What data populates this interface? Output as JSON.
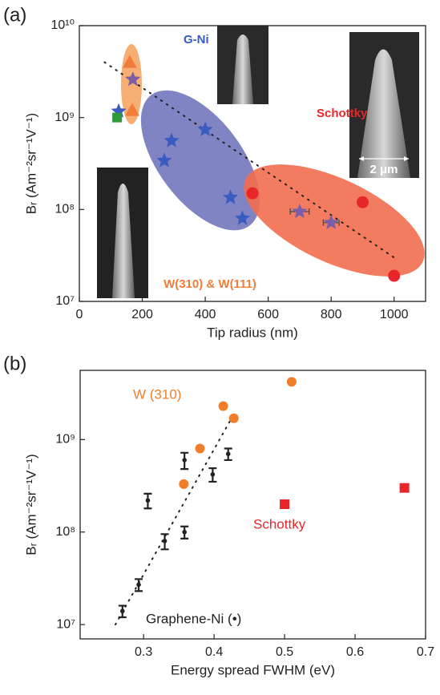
{
  "chart_data": [
    {
      "type": "scatter",
      "label": "(a)",
      "xlabel": "Tip radius (nm)",
      "ylabel": "Bᵣ (Am⁻²sr⁻¹V⁻¹)",
      "log_y": true,
      "xlim": [
        0,
        1100
      ],
      "ylim": [
        10000000,
        10000000000
      ],
      "xticks": [
        0,
        200,
        400,
        600,
        800,
        1000
      ],
      "yticks": [
        {
          "value": 10000000,
          "label": "10⁷"
        },
        {
          "value": 100000000,
          "label": "10⁸"
        },
        {
          "value": 1000000000,
          "label": "10⁹"
        },
        {
          "value": 10000000000,
          "label": "10¹⁰"
        }
      ],
      "series": [
        {
          "marker": "dotted-line",
          "color": "#222222",
          "x": [
            80,
            1000
          ],
          "values": [
            4000000000,
            30000000
          ]
        },
        {
          "marker": "triangle",
          "color": "#f07d3a",
          "x": [
            160,
            168
          ],
          "values": [
            4000000000,
            1200000000
          ]
        },
        {
          "marker": "star",
          "color": "#7b5ea7",
          "x": [
            170
          ],
          "values": [
            2600000000
          ]
        },
        {
          "marker": "star",
          "color": "#7b5ea7",
          "x": [
            700,
            800
          ],
          "values": [
            95000000,
            72000000
          ],
          "xerr": [
            30,
            25
          ]
        },
        {
          "marker": "star",
          "color": "#3a5bbf",
          "x": [
            125,
            293,
            270,
            400,
            480,
            518
          ],
          "values": [
            1170000000,
            560000000,
            340000000,
            740000000,
            135000000,
            80000000
          ]
        },
        {
          "marker": "square",
          "color": "#2e9a3e",
          "x": [
            120
          ],
          "values": [
            1000000000
          ]
        },
        {
          "marker": "circle",
          "color": "#e8262a",
          "x": [
            550,
            900,
            1000
          ],
          "values": [
            150000000,
            120000000,
            19000000
          ]
        }
      ],
      "annotations": [
        {
          "text": "G-Ni",
          "color": "#3a5bbf"
        },
        {
          "text": "Schottky",
          "color": "#e8262a"
        },
        {
          "text": "W(310) & W(111)",
          "color": "#f07d3a"
        },
        {
          "text": "2 μm",
          "color": "#ffffff"
        }
      ]
    },
    {
      "type": "scatter",
      "label": "(b)",
      "xlabel": "Energy spread FWHM (eV)",
      "ylabel": "Bᵣ (Am⁻²sr⁻¹V⁻¹)",
      "log_y": true,
      "xlim": [
        0.21,
        0.7
      ],
      "ylim": [
        7000000,
        5600000000
      ],
      "xticks": [
        0.3,
        0.4,
        0.5,
        0.6,
        0.7
      ],
      "yticks": [
        {
          "value": 10000000,
          "label": "10⁷"
        },
        {
          "value": 100000000,
          "label": "10⁸"
        },
        {
          "value": 1000000000,
          "label": "10⁹"
        }
      ],
      "series": [
        {
          "marker": "dotted-line",
          "color": "#222222",
          "x": [
            0.26,
            0.43
          ],
          "values": [
            10000000,
            2000000000
          ]
        },
        {
          "marker": "circle",
          "color": "#f07d2a",
          "x": [
            0.357,
            0.38,
            0.413,
            0.428,
            0.51
          ],
          "values": [
            330000000,
            800000000,
            2300000000,
            1700000000,
            4200000000
          ]
        },
        {
          "marker": "square",
          "color": "#e8262a",
          "x": [
            0.5,
            0.67
          ],
          "values": [
            200000000,
            300000000
          ]
        },
        {
          "marker": "errorbar",
          "color": "#222222",
          "x": [
            0.27,
            0.293,
            0.306,
            0.33,
            0.358,
            0.358,
            0.398,
            0.42
          ],
          "values": [
            14000000,
            27000000,
            220000000,
            80000000,
            100000000,
            600000000,
            420000000,
            700000000
          ],
          "errors": [
            2000000,
            4000000,
            40000000,
            15000000,
            15000000,
            120000000,
            70000000,
            100000000
          ]
        }
      ],
      "annotations": [
        {
          "text": "W (310)",
          "color": "#f07d2a"
        },
        {
          "text": "Schottky",
          "color": "#e8262a"
        },
        {
          "text": "Graphene-Ni (•)",
          "color": "#222222"
        }
      ]
    }
  ]
}
